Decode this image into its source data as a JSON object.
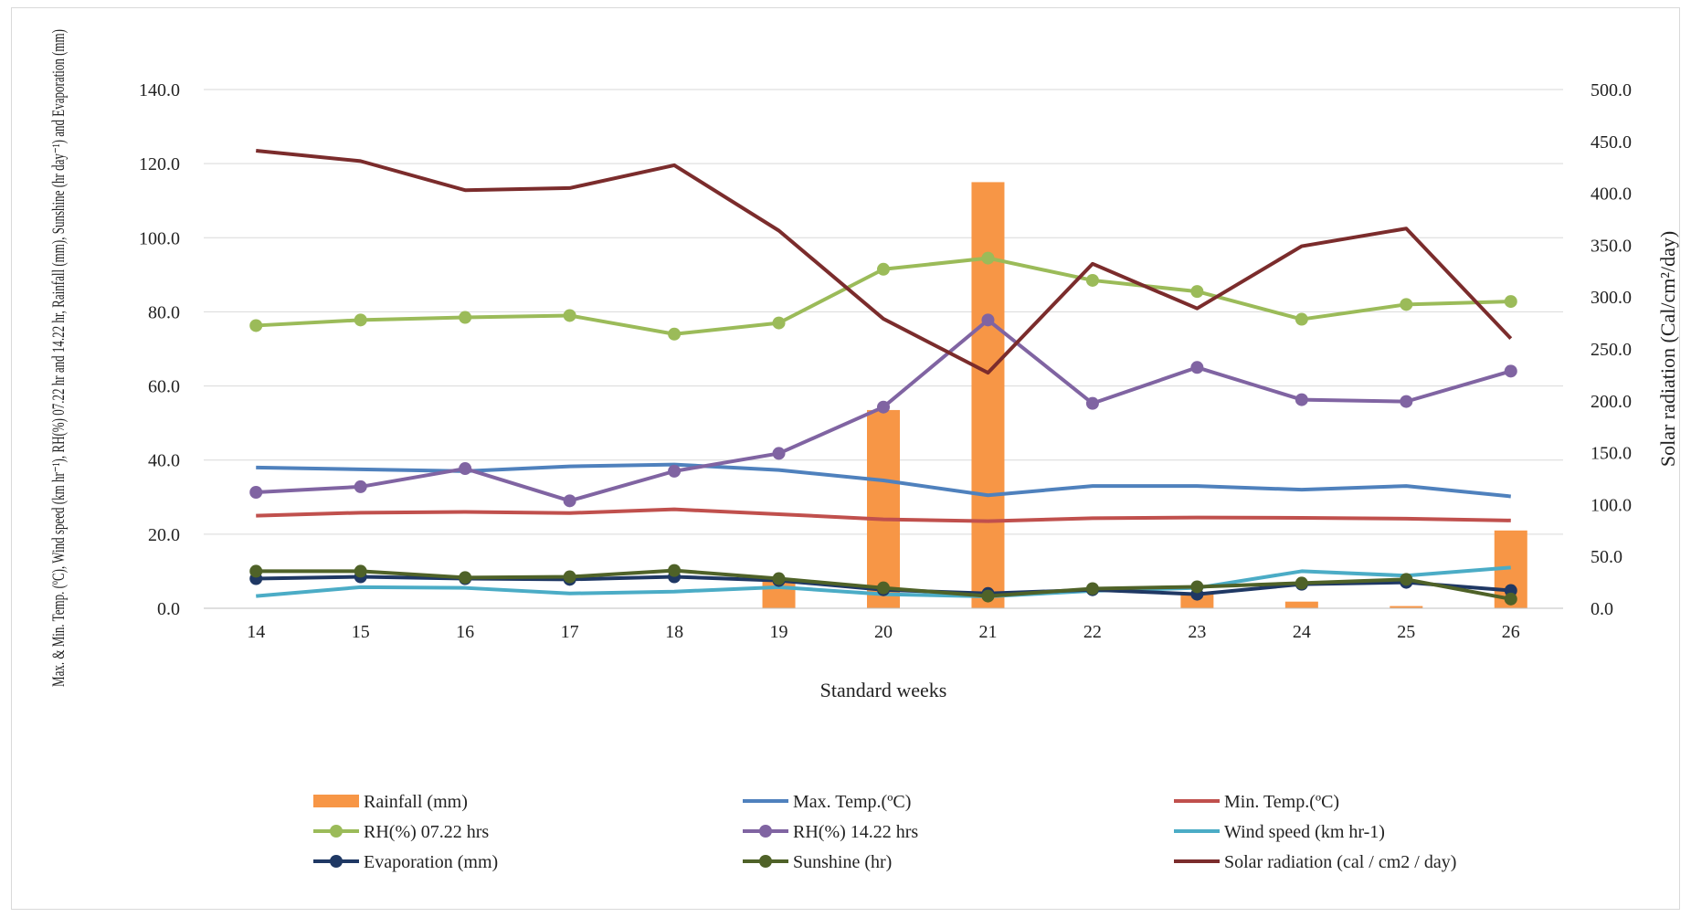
{
  "chart_data": {
    "type": "bar+line",
    "xlabel": "Standard weeks",
    "ylabel_left": "Max. & Min. Temp. (ºC), Wind speed (km hr⁻¹), RH(%) 07.22 hr and 14.22 hr, Rainfall (mm), Sunshine (hr day⁻¹) and Evaporation (mm)",
    "ylabel_right": "Solar radiation (Cal/cm²/day)",
    "ylim_left": [
      0,
      140
    ],
    "ylim_right": [
      0,
      500
    ],
    "yticks_left": [
      "0.0",
      "20.0",
      "40.0",
      "60.0",
      "80.0",
      "100.0",
      "120.0",
      "140.0"
    ],
    "yticks_right": [
      "0.0",
      "50.0",
      "100.0",
      "150.0",
      "200.0",
      "250.0",
      "300.0",
      "350.0",
      "400.0",
      "450.0",
      "500.0"
    ],
    "categories": [
      "14",
      "15",
      "16",
      "17",
      "18",
      "19",
      "20",
      "21",
      "22",
      "23",
      "24",
      "25",
      "26"
    ],
    "grid": true,
    "legend_position": "bottom",
    "series": [
      {
        "name": "Rainfall (mm)",
        "kind": "bar",
        "axis": "left",
        "color": "#F79646",
        "values": [
          0,
          0,
          0,
          0,
          0,
          8.0,
          53.5,
          115.0,
          0,
          3.8,
          1.8,
          0.6,
          21.0
        ]
      },
      {
        "name": "Max. Temp.(ºC)",
        "kind": "line",
        "axis": "left",
        "color": "#4F81BD",
        "marker": false,
        "values": [
          38.0,
          37.5,
          37.0,
          38.3,
          38.8,
          37.3,
          34.5,
          30.5,
          33.0,
          33.0,
          32.0,
          33.0,
          30.2
        ]
      },
      {
        "name": "Min. Temp.(ºC)",
        "kind": "line",
        "axis": "left",
        "color": "#C0504D",
        "marker": false,
        "values": [
          25.0,
          25.8,
          26.0,
          25.7,
          26.7,
          25.4,
          24.0,
          23.5,
          24.3,
          24.5,
          24.4,
          24.2,
          23.7
        ]
      },
      {
        "name": "RH(%) 07.22 hrs",
        "kind": "line",
        "axis": "left",
        "color": "#9BBB59",
        "marker": true,
        "values": [
          76.3,
          77.8,
          78.5,
          79.0,
          74.0,
          77.0,
          91.5,
          94.5,
          88.5,
          85.5,
          78.0,
          82.0,
          82.8
        ]
      },
      {
        "name": "RH(%) 14.22 hrs",
        "kind": "line",
        "axis": "left",
        "color": "#8064A2",
        "marker": true,
        "values": [
          31.3,
          32.8,
          37.7,
          29.0,
          37.0,
          41.8,
          54.3,
          77.8,
          55.3,
          65.0,
          56.3,
          55.8,
          64.0
        ]
      },
      {
        "name": "Wind speed (km hr-1)",
        "kind": "line",
        "axis": "left",
        "color": "#4BACC6",
        "marker": false,
        "values": [
          3.3,
          5.7,
          5.5,
          4.0,
          4.5,
          5.7,
          3.8,
          3.2,
          4.7,
          5.5,
          10.0,
          8.8,
          11.0
        ]
      },
      {
        "name": "Evaporation (mm)",
        "kind": "line",
        "axis": "left",
        "color": "#1F3864",
        "marker": true,
        "values": [
          8.0,
          8.5,
          8.0,
          7.8,
          8.5,
          7.5,
          5.0,
          4.0,
          5.0,
          3.8,
          6.5,
          7.0,
          4.8
        ]
      },
      {
        "name": "Sunshine (hr)",
        "kind": "line",
        "axis": "left",
        "color": "#4F6228",
        "marker": true,
        "values": [
          10.0,
          10.0,
          8.3,
          8.5,
          10.2,
          8.0,
          5.5,
          3.3,
          5.3,
          5.8,
          6.8,
          7.8,
          2.5
        ]
      },
      {
        "name": "Solar radiation  (cal / cm2 / day)",
        "kind": "line",
        "axis": "right",
        "color": "#7B2C2C",
        "marker": false,
        "values": [
          441,
          431,
          403,
          405,
          427,
          364,
          279,
          227,
          332,
          289,
          349,
          366,
          260
        ]
      }
    ]
  }
}
